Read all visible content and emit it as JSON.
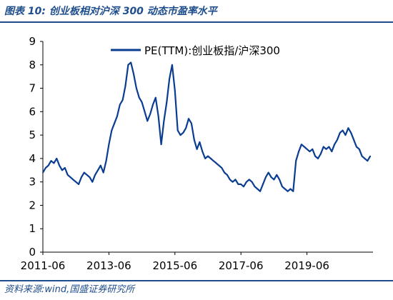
{
  "header": {
    "title": "图表 10:  创业板相对沪深 300 动态市盈率水平"
  },
  "footer": {
    "source": "资料来源:wind,国盛证券研究所"
  },
  "colors": {
    "line": "#0a3d91",
    "accent": "#1f4e8c"
  },
  "chart_data": {
    "type": "line",
    "title": "",
    "xlabel": "",
    "ylabel": "",
    "ylim": [
      0,
      9
    ],
    "y_ticks": [
      "0",
      "1",
      "2",
      "3",
      "4",
      "5",
      "6",
      "7",
      "8",
      "9"
    ],
    "x_tick_labels": [
      "2011-06",
      "2013-06",
      "2015-06",
      "2017-06",
      "2019-06"
    ],
    "x_tick_dates": [
      "2011-06",
      "2013-06",
      "2015-06",
      "2017-06",
      "2019-06"
    ],
    "xlim": [
      "2011-06",
      "2021-06"
    ],
    "legend_position": "top-center",
    "grid": false,
    "series": [
      {
        "name": "PE(TTM):创业板指/沪深300",
        "color": "#0a3d91",
        "x": [
          "2011-06",
          "2011-07",
          "2011-08",
          "2011-09",
          "2011-10",
          "2011-11",
          "2011-12",
          "2012-01",
          "2012-02",
          "2012-03",
          "2012-04",
          "2012-05",
          "2012-06",
          "2012-07",
          "2012-08",
          "2012-09",
          "2012-10",
          "2012-11",
          "2012-12",
          "2013-01",
          "2013-02",
          "2013-03",
          "2013-04",
          "2013-05",
          "2013-06",
          "2013-07",
          "2013-08",
          "2013-09",
          "2013-10",
          "2013-11",
          "2013-12",
          "2014-01",
          "2014-02",
          "2014-03",
          "2014-04",
          "2014-05",
          "2014-06",
          "2014-07",
          "2014-08",
          "2014-09",
          "2014-10",
          "2014-11",
          "2014-12",
          "2015-01",
          "2015-02",
          "2015-03",
          "2015-04",
          "2015-05",
          "2015-06",
          "2015-07",
          "2015-08",
          "2015-09",
          "2015-10",
          "2015-11",
          "2015-12",
          "2016-01",
          "2016-02",
          "2016-03",
          "2016-04",
          "2016-05",
          "2016-06",
          "2016-07",
          "2016-08",
          "2016-09",
          "2016-10",
          "2016-11",
          "2016-12",
          "2017-01",
          "2017-02",
          "2017-03",
          "2017-04",
          "2017-05",
          "2017-06",
          "2017-07",
          "2017-08",
          "2017-09",
          "2017-10",
          "2017-11",
          "2017-12",
          "2018-01",
          "2018-02",
          "2018-03",
          "2018-04",
          "2018-05",
          "2018-06",
          "2018-07",
          "2018-08",
          "2018-09",
          "2018-10",
          "2018-11",
          "2018-12",
          "2019-01",
          "2019-02",
          "2019-03",
          "2019-04",
          "2019-05",
          "2019-06",
          "2019-07",
          "2019-08",
          "2019-09",
          "2019-10",
          "2019-11",
          "2019-12",
          "2020-01",
          "2020-02",
          "2020-03",
          "2020-04",
          "2020-05",
          "2020-06",
          "2020-07",
          "2020-08",
          "2020-09",
          "2020-10",
          "2020-11",
          "2020-12",
          "2021-01",
          "2021-02",
          "2021-03",
          "2021-04",
          "2021-05"
        ],
        "values": [
          3.4,
          3.6,
          3.7,
          3.9,
          3.8,
          4.0,
          3.7,
          3.5,
          3.6,
          3.3,
          3.2,
          3.1,
          3.0,
          2.9,
          3.2,
          3.4,
          3.3,
          3.2,
          3.0,
          3.3,
          3.5,
          3.7,
          3.4,
          3.9,
          4.6,
          5.2,
          5.5,
          5.8,
          6.3,
          6.5,
          7.1,
          8.0,
          8.1,
          7.6,
          7.0,
          6.6,
          6.4,
          6.0,
          5.6,
          5.9,
          6.3,
          6.6,
          5.8,
          4.6,
          5.6,
          6.4,
          7.4,
          8.0,
          6.9,
          5.2,
          5.0,
          5.1,
          5.3,
          5.7,
          5.5,
          4.8,
          4.4,
          4.7,
          4.3,
          4.0,
          4.1,
          4.0,
          3.9,
          3.8,
          3.7,
          3.6,
          3.4,
          3.3,
          3.1,
          3.0,
          3.1,
          2.9,
          2.9,
          2.8,
          3.0,
          3.1,
          3.0,
          2.8,
          2.7,
          2.6,
          2.9,
          3.2,
          3.4,
          3.2,
          3.1,
          3.3,
          3.1,
          2.8,
          2.7,
          2.6,
          2.7,
          2.6,
          3.9,
          4.3,
          4.6,
          4.5,
          4.4,
          4.3,
          4.4,
          4.1,
          4.0,
          4.2,
          4.5,
          4.4,
          4.5,
          4.3,
          4.6,
          4.8,
          5.1,
          5.2,
          5.0,
          5.3,
          5.1,
          4.8,
          4.5,
          4.4,
          4.1,
          4.0,
          3.9,
          4.1
        ]
      }
    ]
  }
}
